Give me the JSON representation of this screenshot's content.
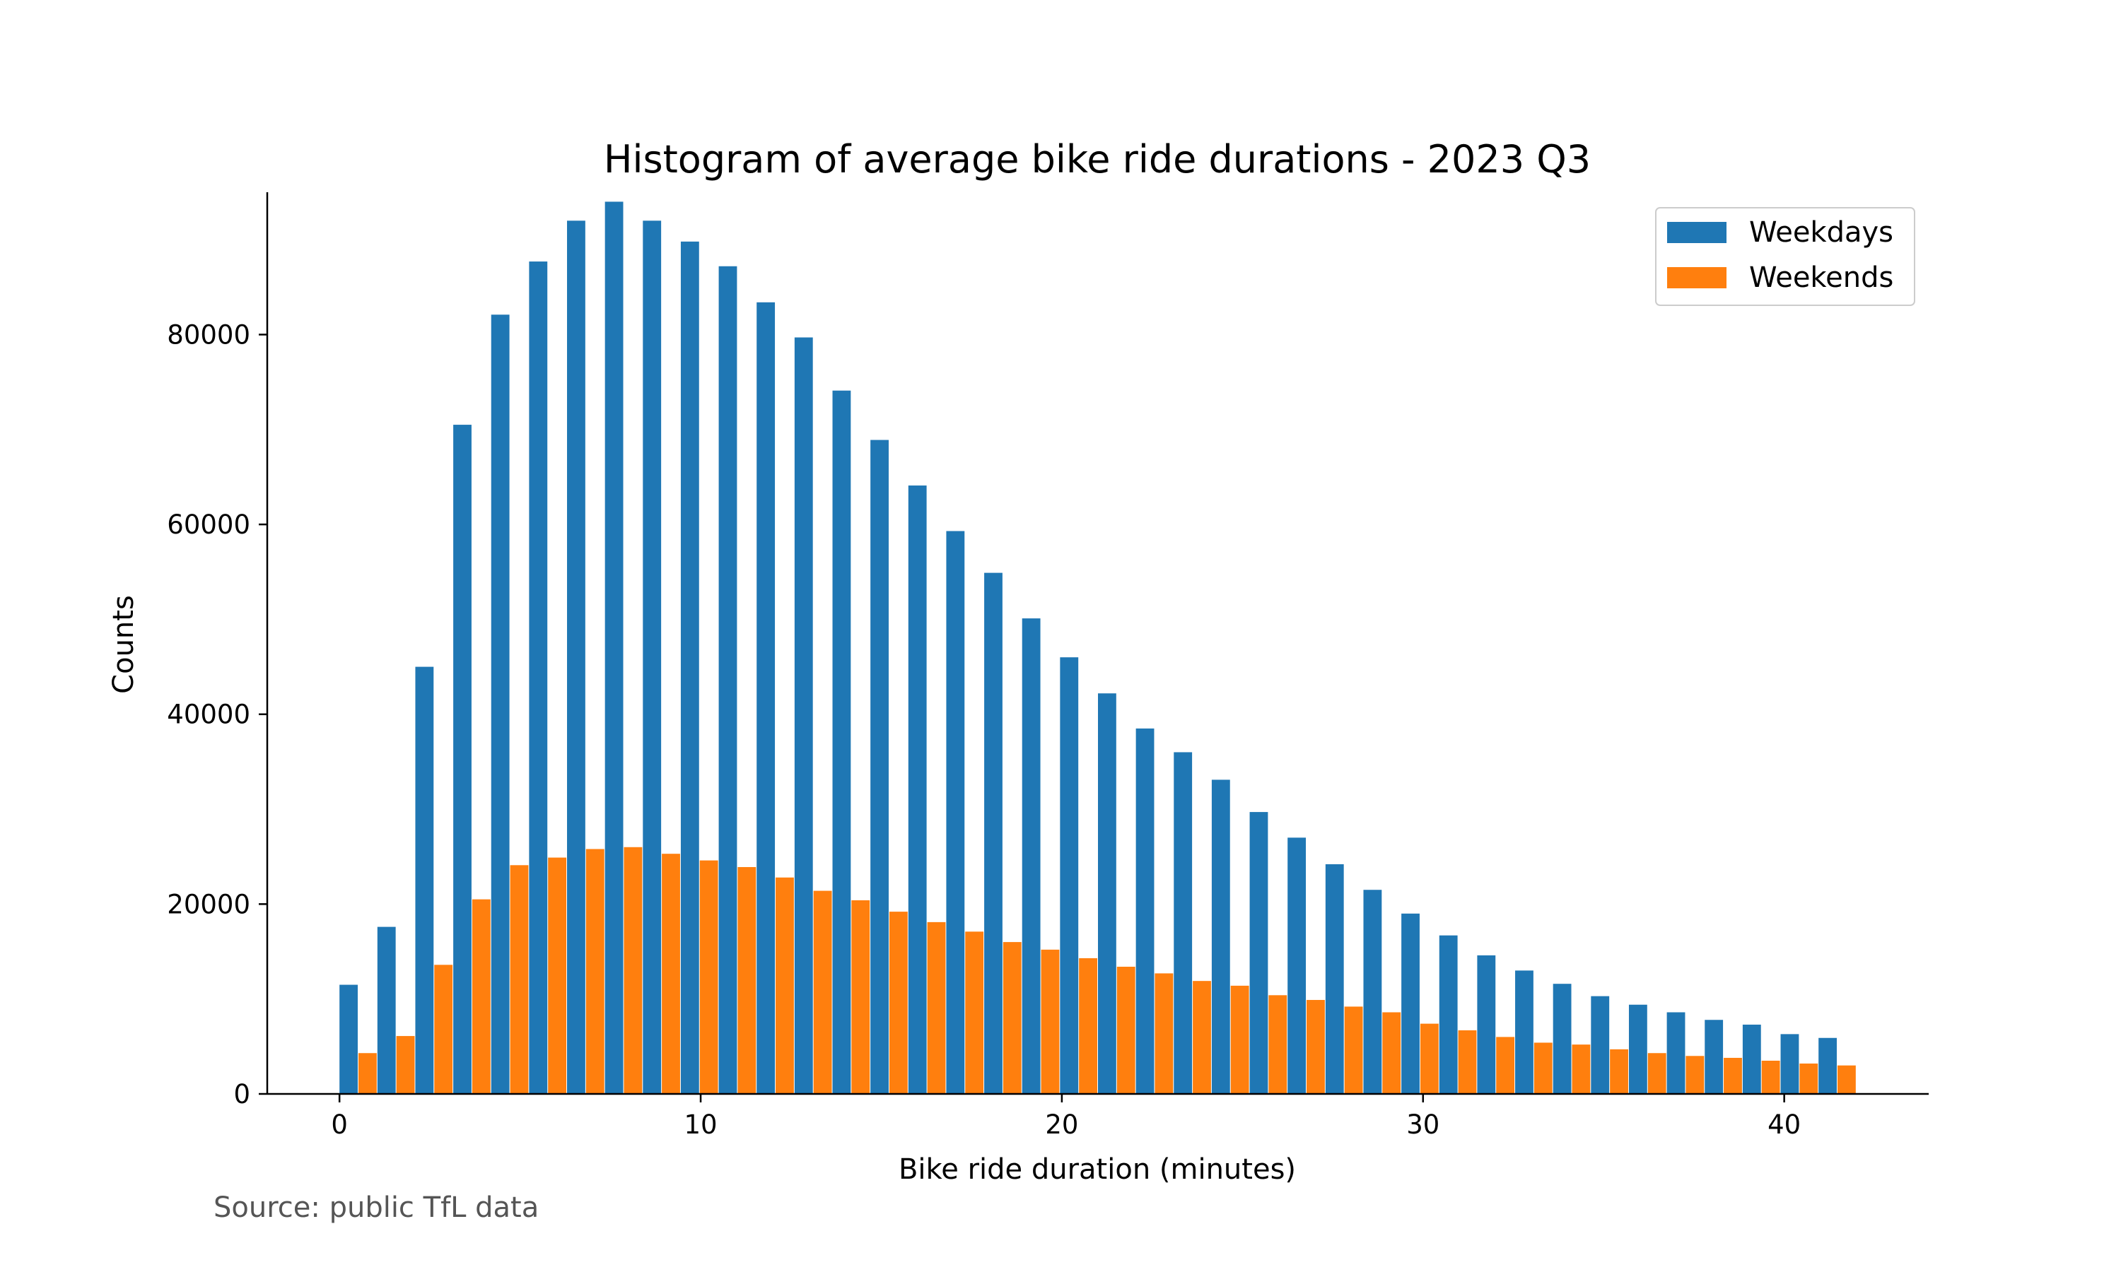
{
  "chart_data": {
    "type": "bar",
    "title": "Histogram of average bike ride durations - 2023 Q3",
    "xlabel": "Bike ride duration (minutes)",
    "ylabel": "Counts",
    "xlim": [
      -2,
      44
    ],
    "ylim": [
      0,
      95000
    ],
    "bin_width": 1.05,
    "x_ticks": [
      0,
      10,
      20,
      30,
      40
    ],
    "y_ticks": [
      0,
      20000,
      40000,
      60000,
      80000
    ],
    "grid": false,
    "legend_position": "top-right",
    "series": [
      {
        "name": "Weekdays",
        "color": "#1f77b4",
        "values": [
          11500,
          17600,
          45000,
          70500,
          82100,
          87700,
          92000,
          94000,
          92000,
          89800,
          87200,
          83400,
          79700,
          74100,
          68900,
          64100,
          59300,
          54900,
          50100,
          46000,
          42200,
          38500,
          36000,
          33100,
          29700,
          27000,
          24200,
          21500,
          19000,
          16700,
          14600,
          13000,
          11600,
          10300,
          9400,
          8600,
          7800,
          7300,
          6300,
          5900
        ]
      },
      {
        "name": "Weekends",
        "color": "#ff7f0e",
        "values": [
          4300,
          6100,
          13600,
          20500,
          24100,
          24900,
          25800,
          26000,
          25300,
          24600,
          23900,
          22800,
          21400,
          20400,
          19200,
          18100,
          17100,
          16000,
          15200,
          14300,
          13400,
          12700,
          11900,
          11400,
          10400,
          9900,
          9200,
          8600,
          7400,
          6700,
          6000,
          5400,
          5200,
          4700,
          4300,
          4000,
          3800,
          3500,
          3200,
          3000
        ]
      }
    ]
  },
  "footer": {
    "source": "Source: public TfL data"
  }
}
